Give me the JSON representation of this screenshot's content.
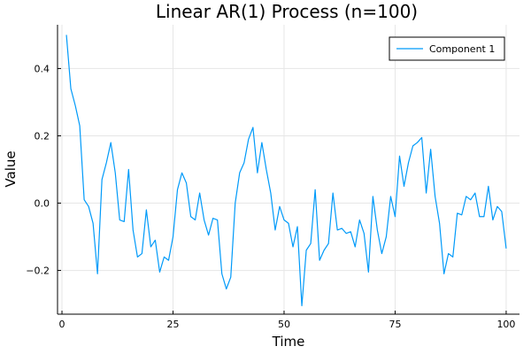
{
  "chart_data": {
    "type": "line",
    "title": "Linear AR(1) Process (n=100)",
    "xlabel": "Time",
    "ylabel": "Value",
    "xlim": [
      -1,
      103
    ],
    "ylim": [
      -0.33,
      0.53
    ],
    "xticks": [
      0,
      25,
      50,
      75,
      100
    ],
    "yticks": [
      -0.2,
      0.0,
      0.2,
      0.4
    ],
    "xtick_labels": [
      "0",
      "25",
      "50",
      "75",
      "100"
    ],
    "ytick_labels": [
      "−0.2",
      "0.0",
      "0.2",
      "0.4"
    ],
    "grid": true,
    "legend_position": "top-right",
    "series": [
      {
        "name": "Component 1",
        "color": "#009af9",
        "x": [
          1,
          2,
          3,
          4,
          5,
          6,
          7,
          8,
          9,
          10,
          11,
          12,
          13,
          14,
          15,
          16,
          17,
          18,
          19,
          20,
          21,
          22,
          23,
          24,
          25,
          26,
          27,
          28,
          29,
          30,
          31,
          32,
          33,
          34,
          35,
          36,
          37,
          38,
          39,
          40,
          41,
          42,
          43,
          44,
          45,
          46,
          47,
          48,
          49,
          50,
          51,
          52,
          53,
          54,
          55,
          56,
          57,
          58,
          59,
          60,
          61,
          62,
          63,
          64,
          65,
          66,
          67,
          68,
          69,
          70,
          71,
          72,
          73,
          74,
          75,
          76,
          77,
          78,
          79,
          80,
          81,
          82,
          83,
          84,
          85,
          86,
          87,
          88,
          89,
          90,
          91,
          92,
          93,
          94,
          95,
          96,
          97,
          98,
          99,
          100
        ],
        "values": [
          0.5,
          0.34,
          0.29,
          0.23,
          0.01,
          -0.01,
          -0.06,
          -0.21,
          0.07,
          0.12,
          0.18,
          0.09,
          -0.05,
          -0.055,
          0.1,
          -0.08,
          -0.16,
          -0.15,
          -0.02,
          -0.13,
          -0.11,
          -0.205,
          -0.16,
          -0.17,
          -0.1,
          0.04,
          0.09,
          0.06,
          -0.04,
          -0.05,
          0.03,
          -0.05,
          -0.095,
          -0.045,
          -0.05,
          -0.21,
          -0.255,
          -0.22,
          0.0,
          0.09,
          0.12,
          0.19,
          0.225,
          0.09,
          0.18,
          0.1,
          0.03,
          -0.08,
          -0.01,
          -0.05,
          -0.06,
          -0.13,
          -0.07,
          -0.305,
          -0.14,
          -0.12,
          0.04,
          -0.17,
          -0.14,
          -0.12,
          0.03,
          -0.08,
          -0.075,
          -0.09,
          -0.085,
          -0.13,
          -0.05,
          -0.09,
          -0.205,
          0.02,
          -0.08,
          -0.15,
          -0.1,
          0.02,
          -0.04,
          0.14,
          0.05,
          0.12,
          0.17,
          0.18,
          0.195,
          0.03,
          0.16,
          0.02,
          -0.06,
          -0.21,
          -0.15,
          -0.16,
          -0.03,
          -0.035,
          0.02,
          0.01,
          0.03,
          -0.04,
          -0.04,
          0.05,
          -0.05,
          -0.01,
          -0.025,
          -0.135
        ]
      }
    ]
  }
}
